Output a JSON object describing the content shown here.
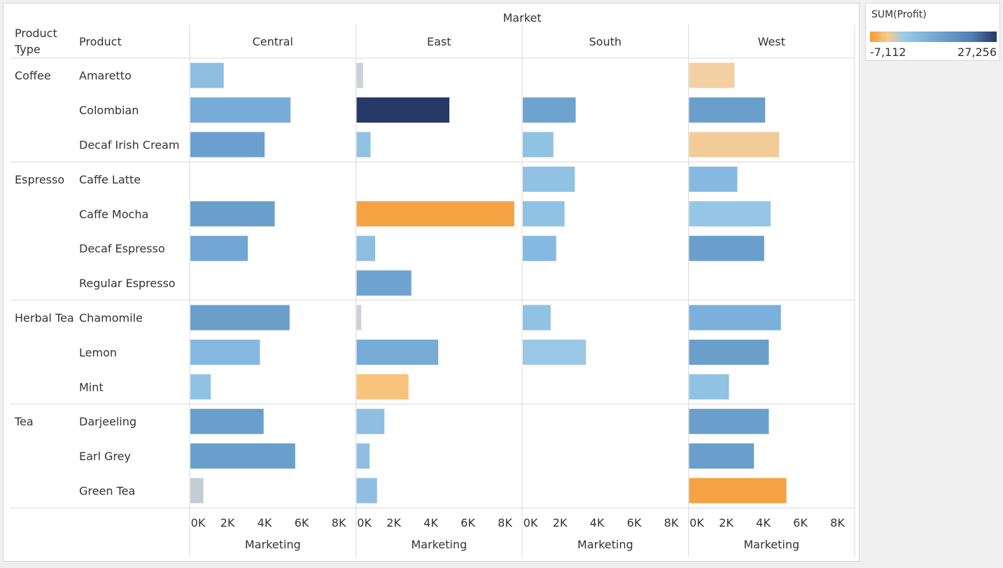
{
  "header": {
    "market_title": "Market",
    "product_type_label": "Product Type",
    "product_label": "Product"
  },
  "legend": {
    "title": "SUM(Profit)",
    "min_label": "-7,112",
    "max_label": "27,256",
    "colors": [
      "#f39a35",
      "#f8cc8e",
      "#9ccbe6",
      "#6ea3cf",
      "#4f7fb4",
      "#253866"
    ]
  },
  "chart_data": {
    "type": "bar",
    "orientation": "horizontal",
    "xlabel": "Marketing",
    "xlim": [
      0,
      8000
    ],
    "x_ticks": [
      0,
      2000,
      4000,
      6000,
      8000
    ],
    "x_tick_labels": [
      "0K",
      "2K",
      "4K",
      "6K",
      "8K"
    ],
    "columns": [
      "Central",
      "East",
      "South",
      "West"
    ],
    "groups": [
      {
        "type": "Coffee",
        "products": [
          "Amaretto",
          "Colombian",
          "Decaf Irish Cream"
        ]
      },
      {
        "type": "Espresso",
        "products": [
          "Caffe Latte",
          "Caffe Mocha",
          "Decaf Espresso",
          "Regular Espresso"
        ]
      },
      {
        "type": "Herbal Tea",
        "products": [
          "Chamomile",
          "Lemon",
          "Mint"
        ]
      },
      {
        "type": "Tea",
        "products": [
          "Darjeeling",
          "Earl Grey",
          "Green Tea"
        ]
      }
    ],
    "series": [
      {
        "name": "Central",
        "values": [
          1800,
          5400,
          4000,
          null,
          4550,
          3100,
          null,
          5350,
          3750,
          1100,
          3950,
          5650,
          700
        ],
        "colors": [
          "#8ebfe2",
          "#77acd9",
          "#6a9fd0",
          null,
          "#6a9fcb",
          "#73a6d4",
          null,
          "#6a9fcb",
          "#86b9e1",
          "#90c2e4",
          "#6a9fcb",
          "#6a9fcb",
          "#c4ccd4"
        ]
      },
      {
        "name": "East",
        "values": [
          350,
          5000,
          750,
          null,
          8500,
          1000,
          2950,
          250,
          4400,
          2800,
          1500,
          700,
          1100
        ],
        "colors": [
          "#cdd1d5",
          "#253866",
          "#90c2e4",
          null,
          "#f5a243",
          "#8ebfe2",
          "#6ea3cf",
          "#cdd1d5",
          "#77acd9",
          "#f8c27a",
          "#8ebfe2",
          "#8ebfe2",
          "#8ebfe2"
        ]
      },
      {
        "name": "South",
        "values": [
          null,
          2850,
          1650,
          2800,
          2250,
          1800,
          null,
          1500,
          3400,
          null,
          null,
          null,
          null
        ],
        "colors": [
          null,
          "#6ea3cf",
          "#90c2e4",
          "#90c2e4",
          "#90c2e4",
          "#86b9e1",
          null,
          "#90c2e4",
          "#9ac7e6",
          null,
          null,
          null,
          null
        ]
      },
      {
        "name": "West",
        "values": [
          2450,
          4100,
          4850,
          2600,
          4400,
          4050,
          null,
          4950,
          4300,
          2150,
          4300,
          3500,
          5250
        ],
        "colors": [
          "#f2d0a4",
          "#6a9fcb",
          "#f1cb98",
          "#86b9e1",
          "#96c6e6",
          "#6a9fcb",
          null,
          "#7ab0db",
          "#6a9fcb",
          "#90c2e4",
          "#6a9fcb",
          "#6a9fcb",
          "#f5a243"
        ]
      }
    ]
  }
}
